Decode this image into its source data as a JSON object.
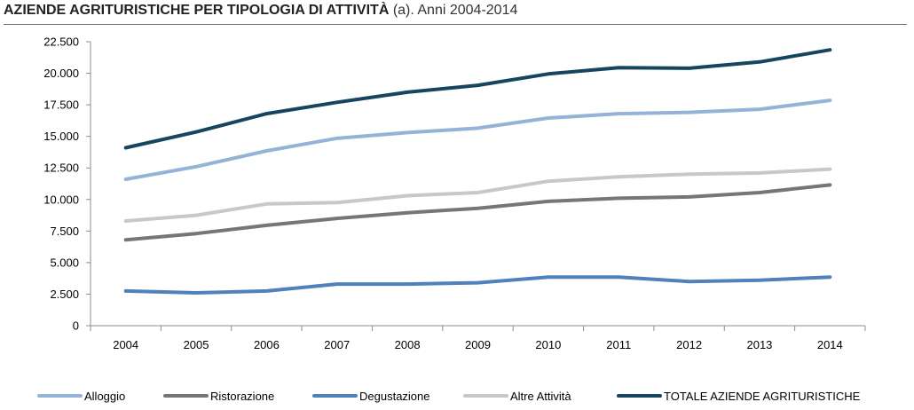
{
  "title": {
    "bold": "AZIENDE AGRITURISTICHE PER TIPOLOGIA DI ATTIVITÀ",
    "normal": " (a). Anni 2004-2014"
  },
  "chart_data": {
    "type": "line",
    "x": [
      "2004",
      "2005",
      "2006",
      "2007",
      "2008",
      "2009",
      "2010",
      "2011",
      "2012",
      "2013",
      "2014"
    ],
    "ylim": [
      0,
      22500
    ],
    "yticks": [
      0,
      2500,
      5000,
      7500,
      10000,
      12500,
      15000,
      17500,
      20000,
      22500
    ],
    "ytick_labels": [
      "0",
      "2.500",
      "5.000",
      "7.500",
      "10.000",
      "12.500",
      "15.000",
      "17.500",
      "20.000",
      "22.500"
    ],
    "grid": false,
    "legend_position": "bottom",
    "series": [
      {
        "name": "Alloggio",
        "color": "#95b3d7",
        "values": [
          11600,
          12600,
          13850,
          14850,
          15300,
          15650,
          16450,
          16800,
          16900,
          17150,
          17850
        ]
      },
      {
        "name": "Ristorazione",
        "color": "#767676",
        "values": [
          6800,
          7300,
          7950,
          8500,
          8950,
          9300,
          9850,
          10100,
          10200,
          10550,
          11150
        ]
      },
      {
        "name": "Degustazione",
        "color": "#4f81bd",
        "values": [
          2750,
          2600,
          2750,
          3300,
          3300,
          3400,
          3850,
          3850,
          3500,
          3600,
          3850
        ]
      },
      {
        "name": "Altre Attività",
        "color": "#c8c8c8",
        "values": [
          8300,
          8750,
          9650,
          9750,
          10300,
          10550,
          11450,
          11800,
          12000,
          12100,
          12400
        ]
      },
      {
        "name": "TOTALE AZIENDE AGRITURISTICHE",
        "color": "#17455f",
        "values": [
          14100,
          15350,
          16800,
          17700,
          18500,
          19050,
          19950,
          20450,
          20400,
          20900,
          21850
        ]
      }
    ]
  }
}
